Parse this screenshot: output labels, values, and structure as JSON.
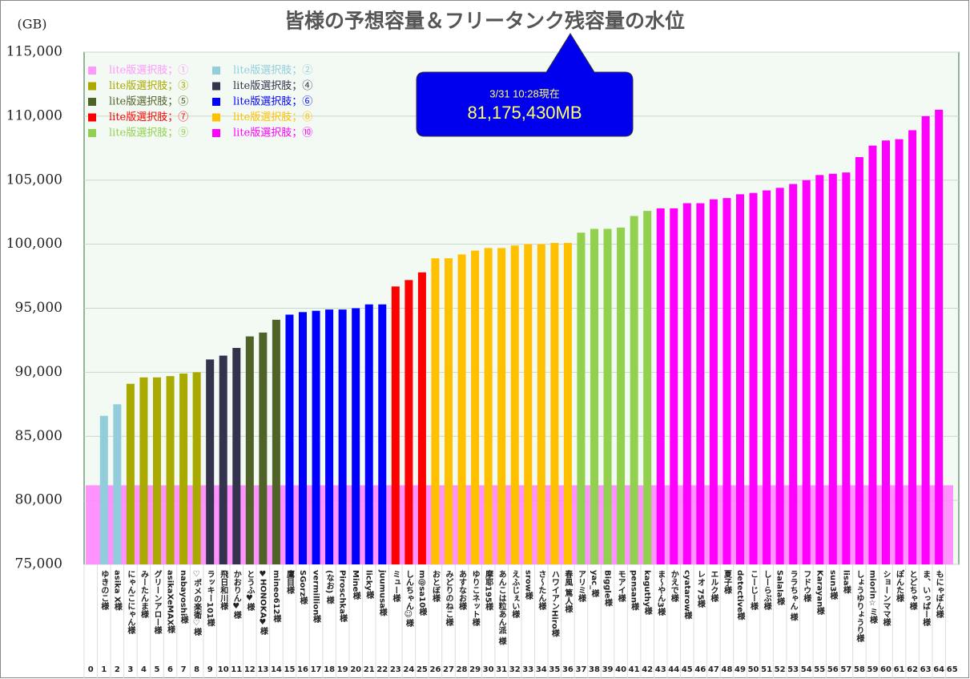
{
  "chart_data": {
    "type": "bar",
    "title": "皆様の予想容量＆フリータンク残容量の水位",
    "y_label": "(GB)",
    "ylim": [
      75000,
      115000
    ],
    "yticks": [
      {
        "value": 75000,
        "label": "75,000"
      },
      {
        "value": 80000,
        "label": "80,000"
      },
      {
        "value": 85000,
        "label": "85,000"
      },
      {
        "value": 90000,
        "label": "90,000"
      },
      {
        "value": 95000,
        "label": "95,000"
      },
      {
        "value": 100000,
        "label": "100,000"
      },
      {
        "value": 105000,
        "label": "105,000"
      },
      {
        "value": 110000,
        "label": "110,000"
      },
      {
        "value": 115000,
        "label": "115,000"
      }
    ],
    "grid": true,
    "legend": "top-left",
    "annotation": {
      "text": "3/31 10:28現在",
      "label": "81,175,430MB",
      "value": 81175.43,
      "color": "#ff80ff"
    },
    "category_numbers": [
      0,
      1,
      2,
      3,
      4,
      5,
      6,
      7,
      8,
      9,
      10,
      11,
      12,
      13,
      14,
      15,
      16,
      17,
      18,
      19,
      20,
      21,
      22,
      23,
      24,
      25,
      26,
      27,
      28,
      29,
      30,
      31,
      32,
      33,
      34,
      35,
      36,
      37,
      38,
      39,
      40,
      41,
      42,
      43,
      44,
      45,
      46,
      47,
      48,
      49,
      50,
      51,
      52,
      53,
      54,
      55,
      56,
      57,
      58,
      59,
      60,
      61,
      62,
      63,
      64,
      65
    ],
    "categories": [
      null,
      "ゆきのこ様",
      "asika X様",
      "にゃんこにゃん様",
      "みーたんま様",
      "グリーンアロー様",
      "asikaXeMAX様",
      "nabayoshi様",
      "♡ポメの楽衛♡様",
      "ラッキー101様",
      "飛日和川様",
      "かおりん♥様",
      "とうふ♥様",
      "♥HONOKA♥様",
      "mineo612様",
      "鷹目様",
      "SGorz様",
      "vermillion様",
      "(なお) 様",
      "Piroschka様",
      "Mine様",
      "licky様",
      "juumusa様",
      "ミュー様",
      "しんちゃん☺様",
      "m@sa10様",
      "おとぼ様",
      "みどりのねこ様",
      "あすなお様",
      "ゆりこネット様",
      "摩耶195様",
      "あんこは粒あん派 様",
      "えふじぇい様",
      "srow様",
      "さ〜たん様",
      "ハワイアンHiro様",
      "春風 篤人様",
      "アリミ様",
      "yac_様",
      "Biggle様",
      "モアイ様",
      "pensan様",
      "kaguthy様",
      "ま〜やん3様",
      "かえで様",
      "cyatarow様",
      "レオ 75様",
      "エルク様",
      "夏子様",
      "detective様",
      "こーじー様",
      "しーらぶ様",
      "Salala様",
      "ララちゃん 様",
      "フドウ様",
      "Karayan様",
      "sun3様",
      "lisa様",
      "しょうゆりょうり様",
      "miorin☆ミ様",
      "ショーンママ様",
      "ぽんた様",
      "とどちゃ様",
      "ま、いっぱー様",
      "もにゃぽん様",
      null
    ],
    "series": [
      {
        "name": "lite版選択肢；①",
        "color": "#ff99ff",
        "values": [
          null,
          null,
          null,
          null,
          null,
          null,
          null,
          null,
          null,
          null,
          null,
          null,
          null,
          null,
          null,
          null,
          null,
          null,
          null,
          null,
          null,
          null,
          null,
          null,
          null,
          null,
          null,
          null,
          null,
          null,
          null,
          null,
          null,
          null,
          null,
          null,
          null,
          null,
          null,
          null,
          null,
          null,
          null,
          null,
          null,
          null,
          null,
          null,
          null,
          null,
          null,
          null,
          null,
          null,
          null,
          null,
          null,
          null,
          null,
          null,
          null,
          null,
          null,
          null,
          null,
          null
        ]
      },
      {
        "name": "lite版選択肢；②",
        "color": "#92cddc",
        "values": [
          null,
          86600,
          87500,
          null,
          null,
          null,
          null,
          null,
          null,
          null,
          null,
          null,
          null,
          null,
          null,
          null,
          null,
          null,
          null,
          null,
          null,
          null,
          null,
          null,
          null,
          null,
          null,
          null,
          null,
          null,
          null,
          null,
          null,
          null,
          null,
          null,
          null,
          null,
          null,
          null,
          null,
          null,
          null,
          null,
          null,
          null,
          null,
          null,
          null,
          null,
          null,
          null,
          null,
          null,
          null,
          null,
          null,
          null,
          null,
          null,
          null,
          null,
          null,
          null,
          null,
          null
        ]
      },
      {
        "name": "lite版選択肢；③",
        "color": "#a9a900",
        "values": [
          null,
          null,
          null,
          89100,
          89600,
          89600,
          89700,
          89900,
          90000,
          null,
          null,
          null,
          null,
          null,
          null,
          null,
          null,
          null,
          null,
          null,
          null,
          null,
          null,
          null,
          null,
          null,
          null,
          null,
          null,
          null,
          null,
          null,
          null,
          null,
          null,
          null,
          null,
          null,
          null,
          null,
          null,
          null,
          null,
          null,
          null,
          null,
          null,
          null,
          null,
          null,
          null,
          null,
          null,
          null,
          null,
          null,
          null,
          null,
          null,
          null,
          null,
          null,
          null,
          null,
          null,
          null
        ]
      },
      {
        "name": "lite版選択肢；④",
        "color": "#33334d",
        "values": [
          null,
          null,
          null,
          null,
          null,
          null,
          null,
          null,
          null,
          91000,
          91300,
          91900,
          null,
          null,
          null,
          null,
          null,
          null,
          null,
          null,
          null,
          null,
          null,
          null,
          null,
          null,
          null,
          null,
          null,
          null,
          null,
          null,
          null,
          null,
          null,
          null,
          null,
          null,
          null,
          null,
          null,
          null,
          null,
          null,
          null,
          null,
          null,
          null,
          null,
          null,
          null,
          null,
          null,
          null,
          null,
          null,
          null,
          null,
          null,
          null,
          null,
          null,
          null,
          null,
          null,
          null
        ]
      },
      {
        "name": "lite版選択肢；⑤",
        "color": "#4f6228",
        "values": [
          null,
          null,
          null,
          null,
          null,
          null,
          null,
          null,
          null,
          null,
          null,
          null,
          92800,
          93100,
          94100,
          null,
          null,
          null,
          null,
          null,
          null,
          null,
          null,
          null,
          null,
          null,
          null,
          null,
          null,
          null,
          null,
          null,
          null,
          null,
          null,
          null,
          null,
          null,
          null,
          null,
          null,
          null,
          null,
          null,
          null,
          null,
          null,
          null,
          null,
          null,
          null,
          null,
          null,
          null,
          null,
          null,
          null,
          null,
          null,
          null,
          null,
          null,
          null,
          null,
          null,
          null
        ]
      },
      {
        "name": "lite版選択肢；⑥",
        "color": "#0000ff",
        "values": [
          null,
          null,
          null,
          null,
          null,
          null,
          null,
          null,
          null,
          null,
          null,
          null,
          null,
          null,
          null,
          94500,
          94700,
          94800,
          94900,
          94900,
          95000,
          95300,
          95300,
          null,
          null,
          null,
          null,
          null,
          null,
          null,
          null,
          null,
          null,
          null,
          null,
          null,
          null,
          null,
          null,
          null,
          null,
          null,
          null,
          null,
          null,
          null,
          null,
          null,
          null,
          null,
          null,
          null,
          null,
          null,
          null,
          null,
          null,
          null,
          null,
          null,
          null,
          null,
          null,
          null,
          null,
          null
        ]
      },
      {
        "name": "lite版選択肢；⑦",
        "color": "#ff0000",
        "values": [
          null,
          null,
          null,
          null,
          null,
          null,
          null,
          null,
          null,
          null,
          null,
          null,
          null,
          null,
          null,
          null,
          null,
          null,
          null,
          null,
          null,
          null,
          null,
          96700,
          97200,
          97800,
          null,
          null,
          null,
          null,
          null,
          null,
          null,
          null,
          null,
          null,
          null,
          null,
          null,
          null,
          null,
          null,
          null,
          null,
          null,
          null,
          null,
          null,
          null,
          null,
          null,
          null,
          null,
          null,
          null,
          null,
          null,
          null,
          null,
          null,
          null,
          null,
          null,
          null,
          null,
          null
        ]
      },
      {
        "name": "lite版選択肢；⑧",
        "color": "#ffc000",
        "values": [
          null,
          null,
          null,
          null,
          null,
          null,
          null,
          null,
          null,
          null,
          null,
          null,
          null,
          null,
          null,
          null,
          null,
          null,
          null,
          null,
          null,
          null,
          null,
          null,
          null,
          null,
          98900,
          98900,
          99200,
          99500,
          99700,
          99700,
          99900,
          100000,
          100000,
          100100,
          100100,
          null,
          null,
          null,
          null,
          null,
          null,
          null,
          null,
          null,
          null,
          null,
          null,
          null,
          null,
          null,
          null,
          null,
          null,
          null,
          null,
          null,
          null,
          null,
          null,
          null,
          null,
          null,
          null,
          null
        ]
      },
      {
        "name": "lite版選択肢；⑨",
        "color": "#92d050",
        "values": [
          null,
          null,
          null,
          null,
          null,
          null,
          null,
          null,
          null,
          null,
          null,
          null,
          null,
          null,
          null,
          null,
          null,
          null,
          null,
          null,
          null,
          null,
          null,
          null,
          null,
          null,
          null,
          null,
          null,
          null,
          null,
          null,
          null,
          null,
          null,
          null,
          null,
          100900,
          101200,
          101200,
          101300,
          102200,
          102600,
          null,
          null,
          null,
          null,
          null,
          null,
          null,
          null,
          null,
          null,
          null,
          null,
          null,
          null,
          null,
          null,
          null,
          null,
          null,
          null,
          null,
          null,
          null
        ]
      },
      {
        "name": "lite版選択肢；⑩",
        "color": "#ff00ff",
        "values": [
          null,
          null,
          null,
          null,
          null,
          null,
          null,
          null,
          null,
          null,
          null,
          null,
          null,
          null,
          null,
          null,
          null,
          null,
          null,
          null,
          null,
          null,
          null,
          null,
          null,
          null,
          null,
          null,
          null,
          null,
          null,
          null,
          null,
          null,
          null,
          null,
          null,
          null,
          null,
          null,
          null,
          null,
          null,
          102800,
          102800,
          103200,
          103200,
          103500,
          103600,
          103900,
          104000,
          104200,
          104400,
          104700,
          105000,
          105400,
          105500,
          105600,
          106800,
          107700,
          108100,
          108200,
          108900,
          110000,
          110500,
          null
        ]
      }
    ]
  }
}
